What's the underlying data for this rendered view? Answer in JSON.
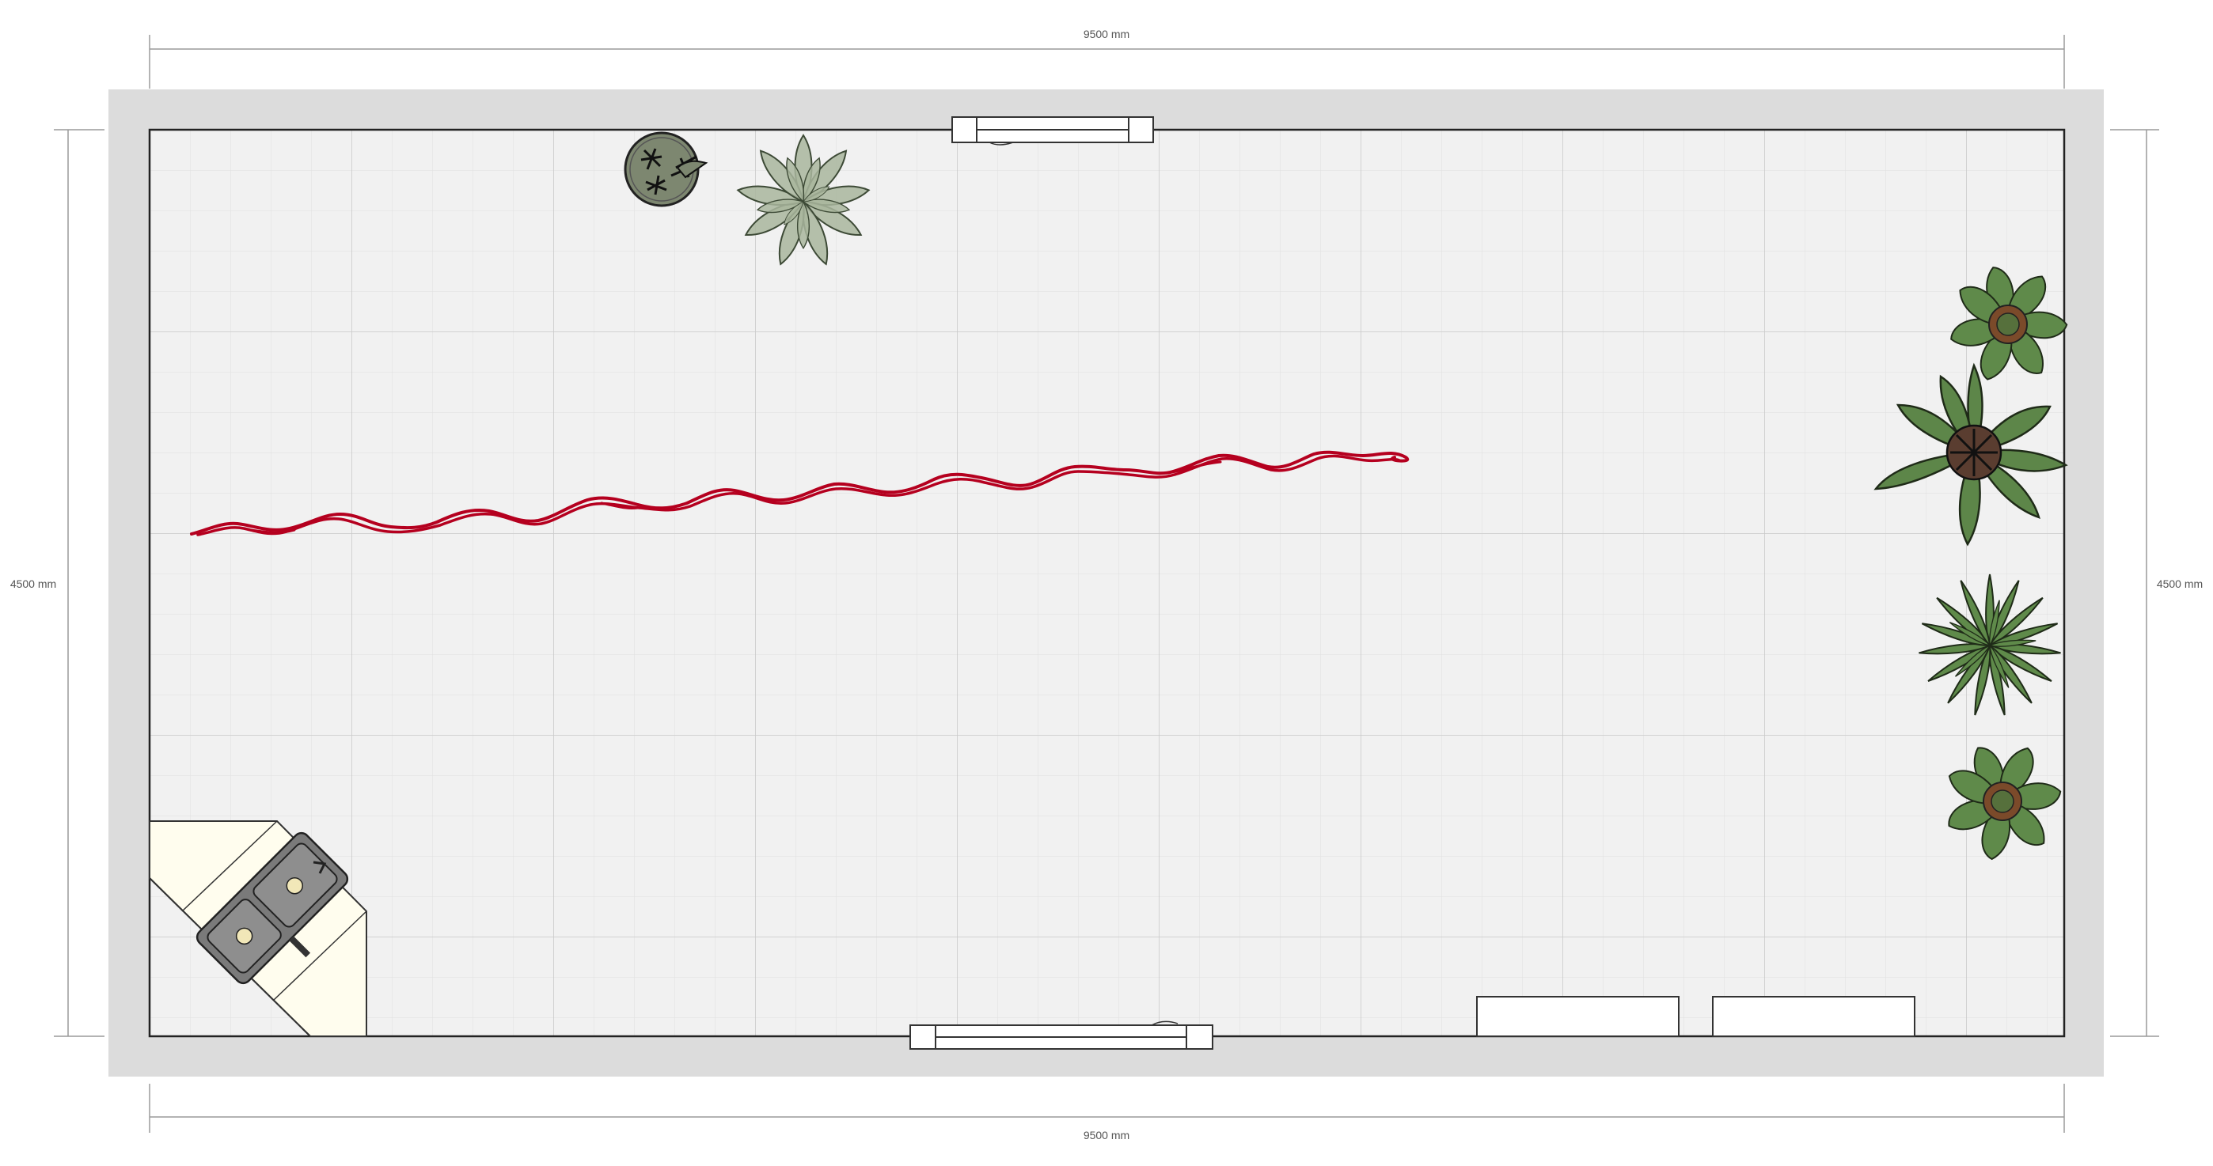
{
  "dimensions": {
    "top": "9500 mm",
    "bottom": "9500 mm",
    "left": "4500 mm",
    "right": "4500 mm"
  },
  "colors": {
    "wall": "#dcdcdc",
    "floor": "#f0f0f0",
    "grid_minor": "#e4e4e4",
    "grid_major": "#cccccc",
    "stroke": "#333333",
    "drawing": "#b5001f",
    "counter": "#fffdee",
    "plant_light": "#a9b69d",
    "plant_dark": "#5d8a48"
  },
  "icons": {
    "top_door": "window-icon",
    "bottom_door": "window-icon",
    "round_pot": "round-planter-icon",
    "succulent": "succulent-plant-icon",
    "corner_sink": "corner-sink-icon",
    "pot_plants": "potted-plant-icon"
  }
}
